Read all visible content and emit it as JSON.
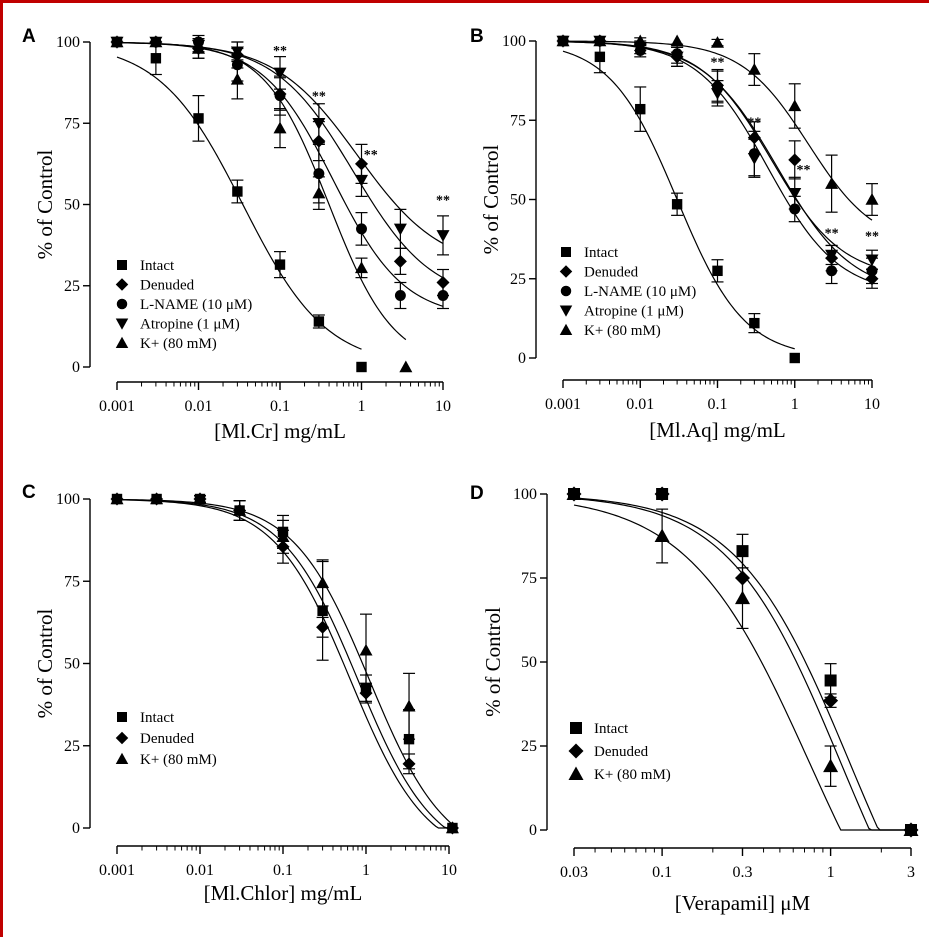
{
  "chart_data": [
    {
      "type": "scatter",
      "panel": "A",
      "xlabel": "[Ml.Cr] mg/mL",
      "ylabel": "% of Control",
      "xscale": "log",
      "xlim": [
        0.001,
        10
      ],
      "ylim": [
        0,
        100
      ],
      "xticks": [
        "0.001",
        "0.01",
        "0.1",
        "1",
        "10"
      ],
      "yticks": [
        "0",
        "25",
        "50",
        "75",
        "100"
      ],
      "legend_position": "lower-left",
      "series": [
        {
          "name": "Intact",
          "marker": "square",
          "x": [
            0.001,
            0.003,
            0.01,
            0.03,
            0.1,
            0.3,
            1
          ],
          "y": [
            100,
            95,
            76.5,
            54,
            31.5,
            14,
            0
          ],
          "err": [
            0,
            5,
            7,
            3.5,
            4,
            2,
            0
          ],
          "fit": {
            "top": 100,
            "bottom": 0,
            "ec50": 0.035,
            "hill": 0.85
          }
        },
        {
          "name": "Denuded",
          "marker": "diamond",
          "x": [
            0.001,
            0.003,
            0.01,
            0.03,
            0.1,
            0.3,
            1,
            3,
            10
          ],
          "y": [
            100,
            100,
            98,
            96,
            84,
            69.5,
            62.5,
            32.5,
            26
          ],
          "err": [
            0,
            0,
            3,
            4,
            5,
            6,
            6,
            4,
            4
          ],
          "fit": {
            "top": 100,
            "bottom": 20,
            "ec50": 0.8,
            "hill": 0.9
          }
        },
        {
          "name": "L-NAME (10 μM)",
          "marker": "circle",
          "x": [
            0.001,
            0.003,
            0.01,
            0.03,
            0.1,
            0.3,
            1,
            3,
            10
          ],
          "y": [
            100,
            100,
            100,
            93,
            83.5,
            59.5,
            42.5,
            22,
            22
          ],
          "err": [
            0,
            0,
            2,
            5,
            6,
            9,
            5,
            4,
            4
          ],
          "fit": {
            "top": 100,
            "bottom": 15,
            "ec50": 0.45,
            "hill": 1.0
          }
        },
        {
          "name": "Atropine (1 μM)",
          "marker": "triangle-down",
          "x": [
            0.001,
            0.003,
            0.01,
            0.03,
            0.1,
            0.3,
            1,
            3,
            10
          ],
          "y": [
            100,
            100,
            99,
            97,
            90.5,
            75,
            57.5,
            42.5,
            40.5
          ],
          "err": [
            0,
            0,
            2,
            3,
            5,
            6,
            5,
            6,
            6
          ],
          "fit": {
            "top": 100,
            "bottom": 30,
            "ec50": 0.9,
            "hill": 0.85
          }
        },
        {
          "name": "K+ (80 mM)",
          "marker": "triangle-up",
          "x": [
            0.001,
            0.003,
            0.01,
            0.03,
            0.1,
            0.3,
            1,
            3.5
          ],
          "y": [
            100,
            100,
            98,
            88.5,
            73.5,
            53.5,
            30.5,
            0
          ],
          "err": [
            0,
            0,
            3,
            6,
            6,
            5,
            3,
            0
          ],
          "fit": {
            "top": 100,
            "bottom": 0,
            "ec50": 0.4,
            "hill": 1.1
          }
        }
      ],
      "annotations": [
        {
          "text": "**",
          "x": 0.1,
          "y": 96
        },
        {
          "text": "**",
          "x": 0.3,
          "y": 82
        },
        {
          "text": "**",
          "x": 1.3,
          "y": 64
        },
        {
          "text": "**",
          "x": 10,
          "y": 50
        }
      ]
    },
    {
      "type": "scatter",
      "panel": "B",
      "xlabel": "[Ml.Aq] mg/mL",
      "ylabel": "% of Control",
      "xscale": "log",
      "xlim": [
        0.001,
        10
      ],
      "ylim": [
        0,
        100
      ],
      "xticks": [
        "0.001",
        "0.01",
        "0.1",
        "1",
        "10"
      ],
      "yticks": [
        "0",
        "25",
        "50",
        "75",
        "100"
      ],
      "legend_position": "lower-left",
      "series": [
        {
          "name": "Intact",
          "marker": "square",
          "x": [
            0.001,
            0.003,
            0.01,
            0.03,
            0.1,
            0.3,
            1
          ],
          "y": [
            100,
            95,
            78.5,
            48.5,
            27.5,
            11,
            0
          ],
          "err": [
            0,
            5,
            7,
            3.5,
            3.5,
            3,
            0
          ],
          "fit": {
            "top": 100,
            "bottom": 0,
            "ec50": 0.03,
            "hill": 1.0
          }
        },
        {
          "name": "Denuded",
          "marker": "diamond",
          "x": [
            0.001,
            0.003,
            0.01,
            0.03,
            0.1,
            0.3,
            1,
            3,
            10
          ],
          "y": [
            100,
            100,
            99,
            95,
            86,
            69.5,
            62.5,
            31.5,
            25
          ],
          "err": [
            0,
            0,
            2,
            3,
            5,
            5,
            6,
            4,
            3
          ],
          "fit": {
            "top": 100,
            "bottom": 20,
            "ec50": 0.6,
            "hill": 0.9
          }
        },
        {
          "name": "L-NAME (10 μM)",
          "marker": "circle",
          "x": [
            0.001,
            0.003,
            0.01,
            0.03,
            0.1,
            0.3,
            1,
            3,
            10
          ],
          "y": [
            100,
            100,
            97,
            96,
            85.5,
            64.5,
            47,
            27.5,
            27.5
          ],
          "err": [
            0,
            0,
            2,
            3,
            5,
            7,
            4,
            4,
            4
          ],
          "fit": {
            "top": 100,
            "bottom": 20,
            "ec50": 0.45,
            "hill": 0.95
          }
        },
        {
          "name": "Atropine (1 μM)",
          "marker": "triangle-down",
          "x": [
            0.001,
            0.003,
            0.01,
            0.03,
            0.1,
            0.3,
            1,
            3,
            10
          ],
          "y": [
            100,
            100,
            98,
            95,
            83.5,
            63,
            52,
            32.5,
            31
          ],
          "err": [
            0,
            0,
            2,
            3,
            4,
            6,
            5,
            3,
            3
          ],
          "fit": {
            "top": 100,
            "bottom": 25,
            "ec50": 0.5,
            "hill": 0.95
          }
        },
        {
          "name": "K+ (80 mM)",
          "marker": "triangle-up",
          "x": [
            0.001,
            0.003,
            0.01,
            0.03,
            0.1,
            0.3,
            1,
            3,
            10
          ],
          "y": [
            100,
            100,
            100,
            100,
            99.5,
            91,
            79.5,
            55,
            50
          ],
          "err": [
            0,
            0,
            0,
            0,
            1,
            5,
            7,
            9,
            5
          ],
          "fit": {
            "top": 100,
            "bottom": 35,
            "ec50": 1.5,
            "hill": 1.0
          }
        }
      ],
      "annotations": [
        {
          "text": "**",
          "x": 0.1,
          "y": 92
        },
        {
          "text": "**",
          "x": 0.3,
          "y": 73
        },
        {
          "text": "**",
          "x": 1.3,
          "y": 58
        },
        {
          "text": "**",
          "x": 3,
          "y": 38
        },
        {
          "text": "**",
          "x": 10,
          "y": 37
        }
      ]
    },
    {
      "type": "scatter",
      "panel": "C",
      "xlabel": "[Ml.Chlor] mg/mL",
      "ylabel": "% of Control",
      "xscale": "log",
      "xlim": [
        0.001,
        10
      ],
      "ylim": [
        0,
        100
      ],
      "xticks": [
        "0.001",
        "0.01",
        "0.1",
        "1",
        "10"
      ],
      "yticks": [
        "0",
        "25",
        "50",
        "75",
        "100"
      ],
      "legend_position": "lower-left",
      "series": [
        {
          "name": "Intact",
          "marker": "square",
          "x": [
            0.001,
            0.003,
            0.01,
            0.03,
            0.1,
            0.3,
            1,
            3.3,
            11
          ],
          "y": [
            100,
            100,
            100,
            96.5,
            90,
            66,
            42.5,
            27,
            0
          ],
          "err": [
            0,
            0,
            1,
            3,
            5,
            15,
            4,
            9,
            0
          ],
          "fit": {
            "top": 100,
            "bottom": -10,
            "ec50": 0.8,
            "hill": 0.95
          }
        },
        {
          "name": "Denuded",
          "marker": "diamond",
          "x": [
            0.001,
            0.003,
            0.01,
            0.03,
            0.1,
            0.3,
            1,
            3.3,
            11
          ],
          "y": [
            100,
            100,
            100,
            96.5,
            85.5,
            61,
            41,
            19.5,
            0
          ],
          "err": [
            0,
            0,
            1,
            3,
            5,
            3,
            3,
            3,
            0
          ],
          "fit": {
            "top": 100,
            "bottom": -10,
            "ec50": 0.65,
            "hill": 0.95
          }
        },
        {
          "name": "K+ (80 mM)",
          "marker": "triangle-up",
          "x": [
            0.001,
            0.003,
            0.01,
            0.03,
            0.1,
            0.3,
            1,
            3.3,
            11
          ],
          "y": [
            100,
            100,
            100,
            96.5,
            88.5,
            74.5,
            54,
            37,
            0
          ],
          "err": [
            0,
            0,
            1,
            3,
            5,
            7,
            11,
            10,
            0
          ],
          "fit": {
            "top": 100,
            "bottom": -10,
            "ec50": 1.1,
            "hill": 0.95
          }
        }
      ]
    },
    {
      "type": "scatter",
      "panel": "D",
      "xlabel": "[Verapamil] μM",
      "ylabel": "% of Control",
      "xscale": "log",
      "xlim": [
        0.03,
        3
      ],
      "ylim": [
        0,
        100
      ],
      "xticks": [
        "0.03",
        "0.1",
        "0.3",
        "1",
        "3"
      ],
      "yticks": [
        "0",
        "25",
        "50",
        "75",
        "100"
      ],
      "legend_position": "lower-left",
      "series": [
        {
          "name": "Intact",
          "marker": "square",
          "x": [
            0.03,
            0.1,
            0.3,
            1,
            3
          ],
          "y": [
            100,
            100,
            83,
            44.5,
            0
          ],
          "err": [
            0,
            0,
            5,
            5,
            0
          ],
          "fit": {
            "top": 100,
            "bottom": -60,
            "ec50": 1.3,
            "hill": 1.3
          }
        },
        {
          "name": "Denuded",
          "marker": "diamond",
          "x": [
            0.03,
            0.1,
            0.3,
            1,
            3
          ],
          "y": [
            100,
            100,
            75,
            38.5,
            0
          ],
          "err": [
            0,
            0,
            7,
            2,
            0
          ],
          "fit": {
            "top": 100,
            "bottom": -60,
            "ec50": 1.15,
            "hill": 1.3
          }
        },
        {
          "name": "K+ (80 mM)",
          "marker": "triangle-up",
          "x": [
            0.03,
            0.1,
            0.3,
            1,
            3
          ],
          "y": [
            100,
            87.5,
            69,
            19,
            0
          ],
          "err": [
            0,
            8,
            9,
            6,
            0
          ],
          "fit": {
            "top": 100,
            "bottom": -60,
            "ec50": 0.75,
            "hill": 1.2
          }
        }
      ]
    }
  ]
}
